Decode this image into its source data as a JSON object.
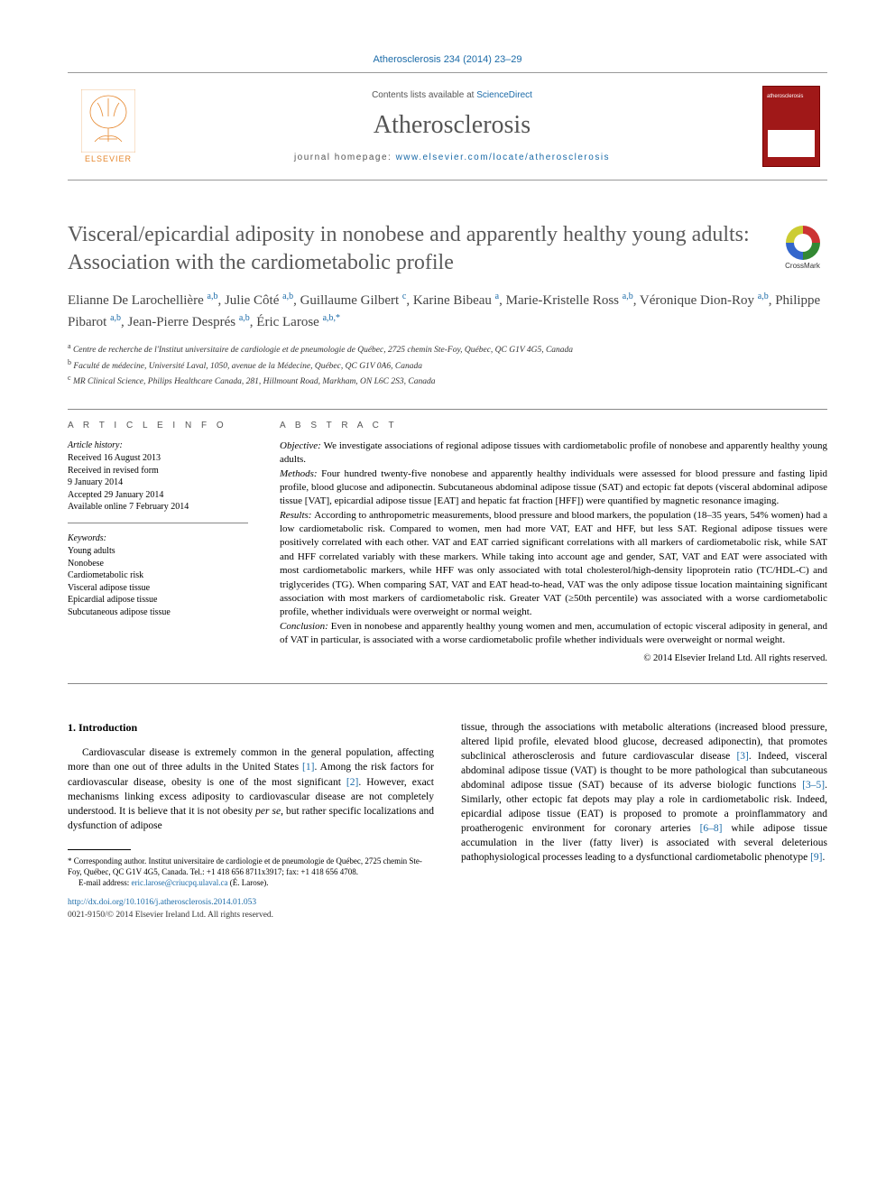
{
  "citation": "Atherosclerosis 234 (2014) 23–29",
  "header": {
    "contents_prefix": "Contents lists available at ",
    "contents_link": "ScienceDirect",
    "journal_name": "Atherosclerosis",
    "homepage_prefix": "journal homepage: ",
    "homepage_url": "www.elsevier.com/locate/atherosclerosis",
    "publisher": "ELSEVIER"
  },
  "title": "Visceral/epicardial adiposity in nonobese and apparently healthy young adults: Association with the cardiometabolic profile",
  "crossmark_label": "CrossMark",
  "authors_html": "Elianne De Larochellière <sup>a,b</sup>, Julie Côté <sup>a,b</sup>, Guillaume Gilbert <sup>c</sup>, Karine Bibeau <sup>a</sup>, Marie-Kristelle Ross <sup>a,b</sup>, Véronique Dion-Roy <sup>a,b</sup>, Philippe Pibarot <sup>a,b</sup>, Jean-Pierre Després <sup>a,b</sup>, Éric Larose <sup>a,b,*</sup>",
  "affiliations": [
    {
      "key": "a",
      "text": "Centre de recherche de l'Institut universitaire de cardiologie et de pneumologie de Québec, 2725 chemin Ste-Foy, Québec, QC G1V 4G5, Canada"
    },
    {
      "key": "b",
      "text": "Faculté de médecine, Université Laval, 1050, avenue de la Médecine, Québec, QC G1V 0A6, Canada"
    },
    {
      "key": "c",
      "text": "MR Clinical Science, Philips Healthcare Canada, 281, Hillmount Road, Markham, ON L6C 2S3, Canada"
    }
  ],
  "article_info": {
    "head": "A R T I C L E   I N F O",
    "history_label": "Article history:",
    "history": [
      "Received 16 August 2013",
      "Received in revised form",
      "9 January 2014",
      "Accepted 29 January 2014",
      "Available online 7 February 2014"
    ],
    "keywords_label": "Keywords:",
    "keywords": [
      "Young adults",
      "Nonobese",
      "Cardiometabolic risk",
      "Visceral adipose tissue",
      "Epicardial adipose tissue",
      "Subcutaneous adipose tissue"
    ]
  },
  "abstract": {
    "head": "A B S T R A C T",
    "segments": [
      {
        "label": "Objective:",
        "text": "We investigate associations of regional adipose tissues with cardiometabolic profile of nonobese and apparently healthy young adults."
      },
      {
        "label": "Methods:",
        "text": "Four hundred twenty-five nonobese and apparently healthy individuals were assessed for blood pressure and fasting lipid profile, blood glucose and adiponectin. Subcutaneous abdominal adipose tissue (SAT) and ectopic fat depots (visceral abdominal adipose tissue [VAT], epicardial adipose tissue [EAT] and hepatic fat fraction [HFF]) were quantified by magnetic resonance imaging."
      },
      {
        "label": "Results:",
        "text": "According to anthropometric measurements, blood pressure and blood markers, the population (18–35 years, 54% women) had a low cardiometabolic risk. Compared to women, men had more VAT, EAT and HFF, but less SAT. Regional adipose tissues were positively correlated with each other. VAT and EAT carried significant correlations with all markers of cardiometabolic risk, while SAT and HFF correlated variably with these markers. While taking into account age and gender, SAT, VAT and EAT were associated with most cardiometabolic markers, while HFF was only associated with total cholesterol/high-density lipoprotein ratio (TC/HDL-C) and triglycerides (TG). When comparing SAT, VAT and EAT head-to-head, VAT was the only adipose tissue location maintaining significant association with most markers of cardiometabolic risk. Greater VAT (≥50th percentile) was associated with a worse cardiometabolic profile, whether individuals were overweight or normal weight."
      },
      {
        "label": "Conclusion:",
        "text": "Even in nonobese and apparently healthy young women and men, accumulation of ectopic visceral adiposity in general, and of VAT in particular, is associated with a worse cardiometabolic profile whether individuals were overweight or normal weight."
      }
    ],
    "copyright": "© 2014 Elsevier Ireland Ltd. All rights reserved."
  },
  "intro": {
    "heading": "1. Introduction",
    "col1": "Cardiovascular disease is extremely common in the general population, affecting more than one out of three adults in the United States [1]. Among the risk factors for cardiovascular disease, obesity is one of the most significant [2]. However, exact mechanisms linking excess adiposity to cardiovascular disease are not completely understood. It is believe that it is not obesity per se, but rather specific localizations and dysfunction of adipose",
    "col2": "tissue, through the associations with metabolic alterations (increased blood pressure, altered lipid profile, elevated blood glucose, decreased adiponectin), that promotes subclinical atherosclerosis and future cardiovascular disease [3]. Indeed, visceral abdominal adipose tissue (VAT) is thought to be more pathological than subcutaneous abdominal adipose tissue (SAT) because of its adverse biologic functions [3–5]. Similarly, other ectopic fat depots may play a role in cardiometabolic risk. Indeed, epicardial adipose tissue (EAT) is proposed to promote a proinflammatory and proatherogenic environment for coronary arteries [6–8] while adipose tissue accumulation in the liver (fatty liver) is associated with several deleterious pathophysiological processes leading to a dysfunctional cardiometabolic phenotype [9]."
  },
  "footnote": {
    "corresponding": "* Corresponding author. Institut universitaire de cardiologie et de pneumologie de Québec, 2725 chemin Ste-Foy, Québec, QC G1V 4G5, Canada. Tel.: +1 418 656 8711x3917; fax: +1 418 656 4708.",
    "email_label": "E-mail address: ",
    "email": "eric.larose@criucpq.ulaval.ca",
    "email_name": " (É. Larose)."
  },
  "doi": {
    "url": "http://dx.doi.org/10.1016/j.atherosclerosis.2014.01.053",
    "issn": "0021-9150/© 2014 Elsevier Ireland Ltd. All rights reserved."
  },
  "colors": {
    "link": "#1b6ba8",
    "title_gray": "#5a5a5a",
    "cover_red": "#a01818",
    "elsevier_orange": "#e6872d"
  }
}
